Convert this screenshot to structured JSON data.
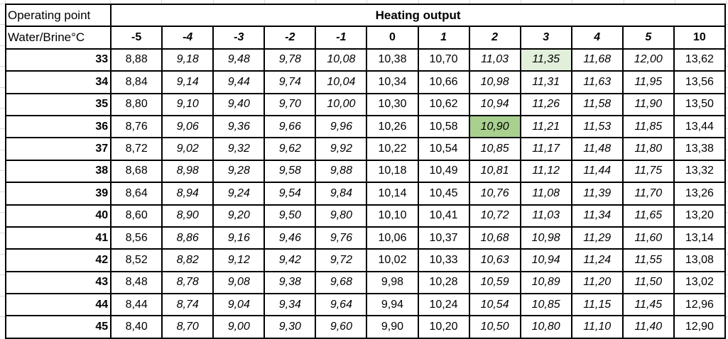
{
  "colors": {
    "highlight_light": "#E2EFDA",
    "highlight_strong": "#A9D08E",
    "border": "#000000",
    "gridline": "#D9D9D9"
  },
  "table": {
    "corner_title": "Operating point",
    "merged_title": "Heating output",
    "row_axis_title": "Water/Brine°C",
    "columns": [
      "-5",
      "-4",
      "-3",
      "-2",
      "-1",
      "0",
      "1",
      "2",
      "3",
      "4",
      "5",
      "10"
    ],
    "italic_header_cols": [
      1,
      2,
      3,
      4,
      6,
      7,
      8,
      9,
      10
    ],
    "italic_value_cols": [
      1,
      2,
      3,
      4,
      7,
      8,
      9,
      10
    ],
    "highlights": [
      {
        "row": 0,
        "col": 8,
        "color": "highlight_light"
      },
      {
        "row": 3,
        "col": 7,
        "color": "highlight_strong"
      }
    ],
    "rows": [
      {
        "label": "33",
        "values": [
          "8,88",
          "9,18",
          "9,48",
          "9,78",
          "10,08",
          "10,38",
          "10,70",
          "11,03",
          "11,35",
          "11,68",
          "12,00",
          "13,62"
        ]
      },
      {
        "label": "34",
        "values": [
          "8,84",
          "9,14",
          "9,44",
          "9,74",
          "10,04",
          "10,34",
          "10,66",
          "10,98",
          "11,31",
          "11,63",
          "11,95",
          "13,56"
        ]
      },
      {
        "label": "35",
        "values": [
          "8,80",
          "9,10",
          "9,40",
          "9,70",
          "10,00",
          "10,30",
          "10,62",
          "10,94",
          "11,26",
          "11,58",
          "11,90",
          "13,50"
        ]
      },
      {
        "label": "36",
        "values": [
          "8,76",
          "9,06",
          "9,36",
          "9,66",
          "9,96",
          "10,26",
          "10,58",
          "10,90",
          "11,21",
          "11,53",
          "11,85",
          "13,44"
        ]
      },
      {
        "label": "37",
        "values": [
          "8,72",
          "9,02",
          "9,32",
          "9,62",
          "9,92",
          "10,22",
          "10,54",
          "10,85",
          "11,17",
          "11,48",
          "11,80",
          "13,38"
        ]
      },
      {
        "label": "38",
        "values": [
          "8,68",
          "8,98",
          "9,28",
          "9,58",
          "9,88",
          "10,18",
          "10,49",
          "10,81",
          "11,12",
          "11,44",
          "11,75",
          "13,32"
        ]
      },
      {
        "label": "39",
        "values": [
          "8,64",
          "8,94",
          "9,24",
          "9,54",
          "9,84",
          "10,14",
          "10,45",
          "10,76",
          "11,08",
          "11,39",
          "11,70",
          "13,26"
        ]
      },
      {
        "label": "40",
        "values": [
          "8,60",
          "8,90",
          "9,20",
          "9,50",
          "9,80",
          "10,10",
          "10,41",
          "10,72",
          "11,03",
          "11,34",
          "11,65",
          "13,20"
        ]
      },
      {
        "label": "41",
        "values": [
          "8,56",
          "8,86",
          "9,16",
          "9,46",
          "9,76",
          "10,06",
          "10,37",
          "10,68",
          "10,98",
          "11,29",
          "11,60",
          "13,14"
        ]
      },
      {
        "label": "42",
        "values": [
          "8,52",
          "8,82",
          "9,12",
          "9,42",
          "9,72",
          "10,02",
          "10,33",
          "10,63",
          "10,94",
          "11,24",
          "11,55",
          "13,08"
        ]
      },
      {
        "label": "43",
        "values": [
          "8,48",
          "8,78",
          "9,08",
          "9,38",
          "9,68",
          "9,98",
          "10,28",
          "10,59",
          "10,89",
          "11,20",
          "11,50",
          "13,02"
        ]
      },
      {
        "label": "44",
        "values": [
          "8,44",
          "8,74",
          "9,04",
          "9,34",
          "9,64",
          "9,94",
          "10,24",
          "10,54",
          "10,85",
          "11,15",
          "11,45",
          "12,96"
        ]
      },
      {
        "label": "45",
        "values": [
          "8,40",
          "8,70",
          "9,00",
          "9,30",
          "9,60",
          "9,90",
          "10,20",
          "10,50",
          "10,80",
          "11,10",
          "11,40",
          "12,90"
        ]
      }
    ]
  }
}
